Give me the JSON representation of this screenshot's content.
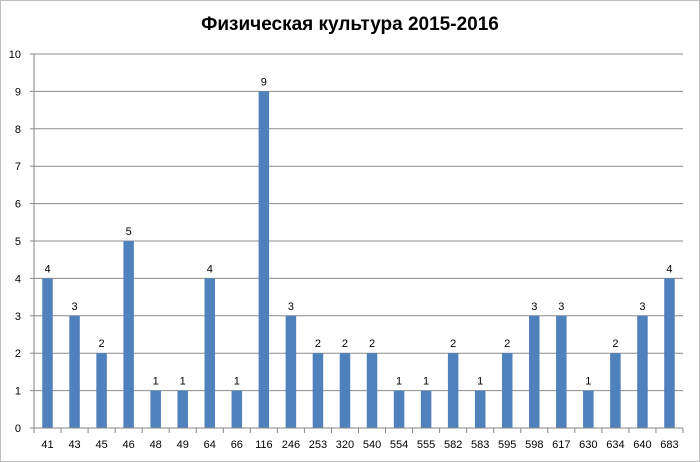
{
  "chart_data": {
    "type": "bar",
    "title": "Физическая культура 2015-2016",
    "xlabel": "",
    "ylabel": "",
    "categories": [
      "41",
      "43",
      "45",
      "46",
      "48",
      "49",
      "64",
      "66",
      "116",
      "246",
      "253",
      "320",
      "540",
      "554",
      "555",
      "582",
      "583",
      "595",
      "598",
      "617",
      "630",
      "634",
      "640",
      "683"
    ],
    "values": [
      4,
      3,
      2,
      5,
      1,
      1,
      4,
      1,
      9,
      3,
      2,
      2,
      2,
      1,
      1,
      2,
      1,
      2,
      3,
      3,
      1,
      2,
      3,
      4
    ],
    "ylim": [
      0,
      10
    ],
    "yticks": [
      0,
      1,
      2,
      3,
      4,
      5,
      6,
      7,
      8,
      9,
      10
    ],
    "grid": true,
    "legend": "none",
    "data_labels": true,
    "colors": {
      "bar": "#4f81bd",
      "grid": "#8c8c8c",
      "axis": "#868686"
    }
  }
}
